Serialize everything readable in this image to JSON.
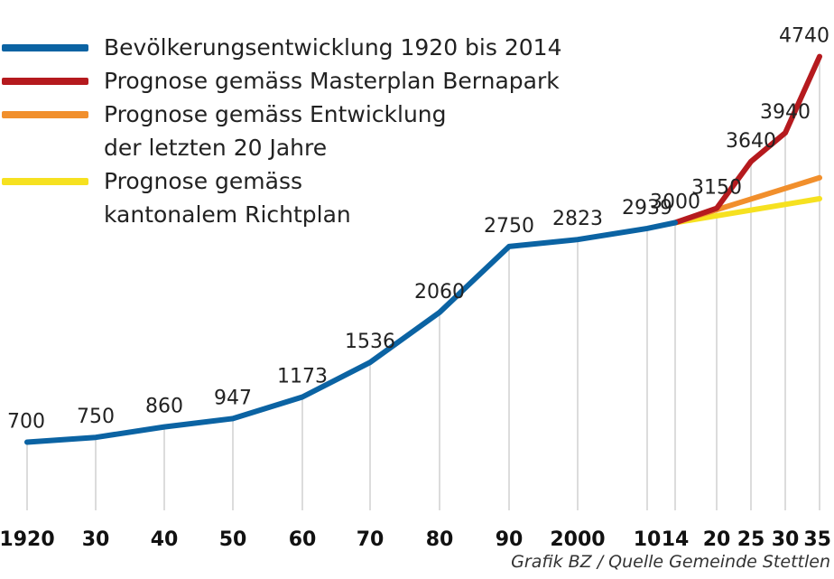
{
  "chart_data": {
    "type": "line",
    "xlabels": [
      {
        "year": 1920,
        "label": "1920"
      },
      {
        "year": 1930,
        "label": "30"
      },
      {
        "year": 1940,
        "label": "40"
      },
      {
        "year": 1950,
        "label": "50"
      },
      {
        "year": 1960,
        "label": "60"
      },
      {
        "year": 1970,
        "label": "70"
      },
      {
        "year": 1980,
        "label": "80"
      },
      {
        "year": 1990,
        "label": "90"
      },
      {
        "year": 2000,
        "label": "2000"
      },
      {
        "year": 2010,
        "label": "10"
      },
      {
        "year": 2014,
        "label": "14"
      },
      {
        "year": 2020,
        "label": "20"
      },
      {
        "year": 2025,
        "label": "25"
      },
      {
        "year": 2030,
        "label": "30"
      },
      {
        "year": 2035,
        "label": "35"
      }
    ],
    "series": [
      {
        "name": "Bevölkerungsentwicklung 1920 bis 2014",
        "color": "#0b63a3",
        "x": [
          1920,
          1930,
          1940,
          1950,
          1960,
          1970,
          1980,
          1990,
          2000,
          2010,
          2014
        ],
        "y": [
          700,
          750,
          860,
          947,
          1173,
          1536,
          2060,
          2750,
          2823,
          2939,
          3000
        ]
      },
      {
        "name": "Prognose gemäss Masterplan Bernapark",
        "color": "#b51a1e",
        "x": [
          2014,
          2020,
          2025,
          2030,
          2035
        ],
        "y": [
          3000,
          3150,
          3640,
          3940,
          4740
        ]
      },
      {
        "name": "Prognose gemäss Entwicklung der letzten 20 Jahre",
        "color": "#f18f2c",
        "x": [
          2014,
          2035
        ],
        "y": [
          3000,
          3470
        ]
      },
      {
        "name": "Prognose gemäss kantonalem Richtplan",
        "color": "#f6e120",
        "x": [
          2014,
          2035
        ],
        "y": [
          3000,
          3250
        ]
      }
    ],
    "data_labels": [
      {
        "x": 1920,
        "y": 700,
        "text": "700"
      },
      {
        "x": 1930,
        "y": 750,
        "text": "750"
      },
      {
        "x": 1940,
        "y": 860,
        "text": "860"
      },
      {
        "x": 1950,
        "y": 947,
        "text": "947"
      },
      {
        "x": 1960,
        "y": 1173,
        "text": "1173"
      },
      {
        "x": 1970,
        "y": 1536,
        "text": "1536"
      },
      {
        "x": 1980,
        "y": 2060,
        "text": "2060"
      },
      {
        "x": 1990,
        "y": 2750,
        "text": "2750"
      },
      {
        "x": 2000,
        "y": 2823,
        "text": "2823"
      },
      {
        "x": 2010,
        "y": 2939,
        "text": "2939"
      },
      {
        "x": 2014,
        "y": 3000,
        "text": "3000"
      },
      {
        "x": 2020,
        "y": 3150,
        "text": "3150"
      },
      {
        "x": 2025,
        "y": 3640,
        "text": "3640"
      },
      {
        "x": 2030,
        "y": 3940,
        "text": "3940"
      },
      {
        "x": 2035,
        "y": 4740,
        "text": "4740"
      }
    ],
    "legend": {
      "position": "top-left",
      "entries": [
        {
          "lines": [
            "Bevölkerungsentwicklung 1920 bis 2014"
          ],
          "color": "#0b63a3"
        },
        {
          "lines": [
            "Prognose gemäss Masterplan Bernapark"
          ],
          "color": "#b51a1e"
        },
        {
          "lines": [
            "Prognose gemäss Entwicklung",
            "der letzten 20 Jahre"
          ],
          "color": "#f18f2c"
        },
        {
          "lines": [
            "Prognose gemäss",
            "kantonalem Richtplan"
          ],
          "color": "#f6e120"
        }
      ]
    },
    "ylim": [
      0,
      4800
    ],
    "grid": "vertical lines at each labelled year",
    "source": "Grafik BZ / Quelle Gemeinde Stettlen"
  }
}
